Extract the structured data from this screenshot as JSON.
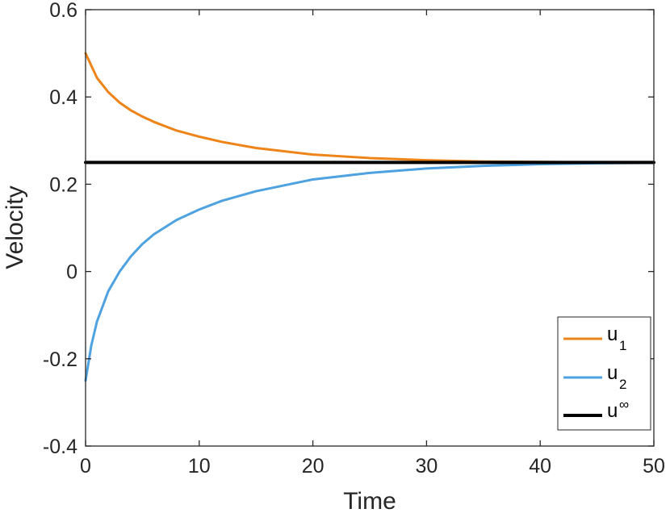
{
  "chart_data": {
    "type": "line",
    "title": "",
    "xlabel": "Time",
    "ylabel": "Velocity",
    "xlim": [
      0,
      50
    ],
    "ylim": [
      -0.4,
      0.6
    ],
    "xticks": [
      0,
      10,
      20,
      30,
      40,
      50
    ],
    "yticks": [
      -0.4,
      -0.2,
      0,
      0.2,
      0.4,
      0.6
    ],
    "xtick_labels": [
      "0",
      "10",
      "20",
      "30",
      "40",
      "50"
    ],
    "ytick_labels": [
      "-0.4",
      "-0.2",
      "0",
      "0.2",
      "0.4",
      "0.6"
    ],
    "grid": false,
    "legend_position": "bottom-right",
    "series": [
      {
        "name": "u_1",
        "legend_base": "u",
        "legend_script": "1",
        "script_type": "sub",
        "color": "#EE8417",
        "x": [
          0,
          1,
          2,
          3,
          4,
          5,
          6,
          8,
          10,
          12,
          15,
          20,
          25,
          30,
          35,
          40,
          45,
          50
        ],
        "y": [
          0.5,
          0.444,
          0.411,
          0.387,
          0.369,
          0.355,
          0.343,
          0.323,
          0.309,
          0.297,
          0.283,
          0.268,
          0.26,
          0.255,
          0.252,
          0.251,
          0.25,
          0.25
        ]
      },
      {
        "name": "u_2",
        "legend_base": "u",
        "legend_script": "2",
        "script_type": "sub",
        "color": "#4DA2DF",
        "x": [
          0,
          0.5,
          1,
          2,
          3,
          4,
          5,
          6,
          8,
          10,
          12,
          15,
          20,
          25,
          30,
          35,
          40,
          45,
          50
        ],
        "y": [
          -0.25,
          -0.17,
          -0.115,
          -0.045,
          0.0,
          0.035,
          0.063,
          0.085,
          0.118,
          0.142,
          0.162,
          0.184,
          0.211,
          0.226,
          0.236,
          0.242,
          0.246,
          0.248,
          0.249
        ]
      },
      {
        "name": "u^∞",
        "legend_base": "u",
        "legend_script": "∞",
        "script_type": "sup",
        "color": "#000000",
        "x": [
          0,
          50
        ],
        "y": [
          0.25,
          0.25
        ]
      }
    ]
  }
}
